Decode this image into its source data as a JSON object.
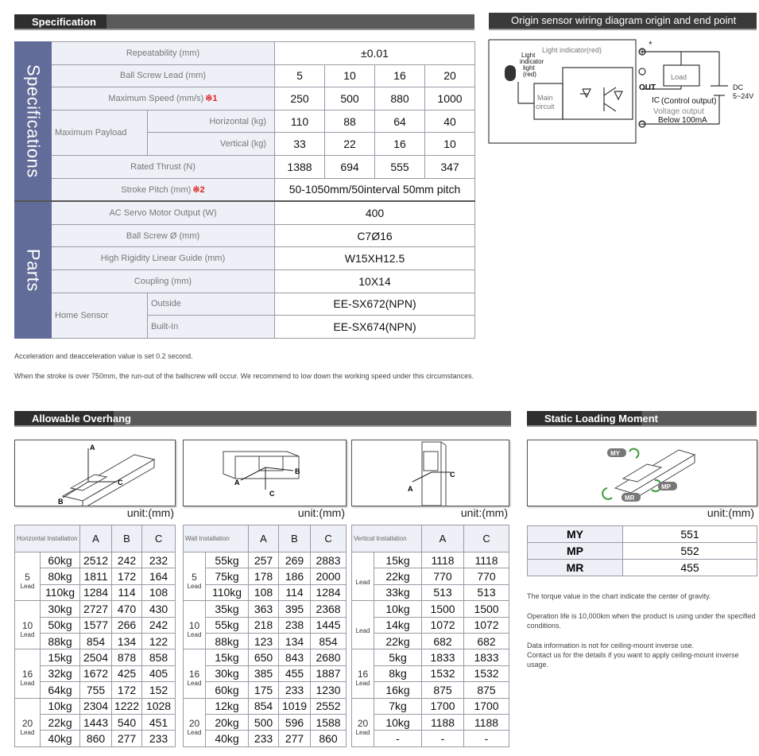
{
  "specification": {
    "title": "Specification",
    "groups": [
      {
        "name": "Specifications",
        "rows": [
          {
            "label": "Repeatability (mm)",
            "values": [
              "±0.01"
            ]
          },
          {
            "label": "Ball Screw Lead (mm)",
            "values": [
              5,
              10,
              16,
              20
            ]
          },
          {
            "label": "Maximum Speed (mm/s)",
            "note": "※1",
            "values": [
              250,
              500,
              880,
              1000
            ]
          },
          {
            "label": "Maximum Payload",
            "sub": [
              {
                "label": "Horizontal (kg)",
                "values": [
                  110,
                  88,
                  64,
                  40
                ]
              },
              {
                "label": "Vertical (kg)",
                "values": [
                  33,
                  22,
                  16,
                  10
                ]
              }
            ]
          },
          {
            "label": "Rated Thrust (N)",
            "values": [
              1388,
              694,
              555,
              347
            ]
          },
          {
            "label": "Stroke Pitch (mm)",
            "note": "※2",
            "values": [
              "50-1050mm/50interval 50mm pitch"
            ]
          }
        ]
      },
      {
        "name": "Parts",
        "rows": [
          {
            "label": "AC Servo Motor Output (W)",
            "values": [
              400
            ]
          },
          {
            "label": "Ball Screw Ø (mm)",
            "values": [
              "C7Ø16"
            ]
          },
          {
            "label": "High Rigidity Linear Guide (mm)",
            "values": [
              "W15XH12.5"
            ]
          },
          {
            "label": "Coupling (mm)",
            "values": [
              "10X14"
            ]
          },
          {
            "label": "Home Sensor",
            "sub": [
              {
                "label": "Outside",
                "values": [
                  "EE-SX672(NPN)"
                ]
              },
              {
                "label": "Built-In",
                "values": [
                  "EE-SX674(NPN)"
                ]
              }
            ]
          }
        ]
      }
    ],
    "notes": [
      "Acceleration and deacceleration value is set 0.2 second.",
      "When the stroke is over 750mm, the run-out of the ballscrew will occur. We recommend to low down the working speed under this circumstances."
    ]
  },
  "wiring": {
    "title": "Origin sensor wiring diagram origin and end point",
    "indicator": "Light indicator(red)",
    "indicator_light": [
      "Light",
      "indicator",
      "light",
      "(red)"
    ],
    "main_circuit": [
      "Main",
      "circuit"
    ],
    "load": "Load",
    "out": "OUT",
    "ic": "IC",
    "control": "(Control output)",
    "voltage": "Voltage output",
    "current": "Below 100mA",
    "dc": [
      "DC",
      "5~24V"
    ],
    "plus": "⊕",
    "minus": "⊖",
    "star": "*"
  },
  "overhang": {
    "title": "Allowable Overhang",
    "tables": [
      {
        "figure_labels": [
          "A",
          "B",
          "C"
        ],
        "unit": "unit:(mm)",
        "header": [
          "Horizontal Installation",
          "A",
          "B",
          "C"
        ],
        "groups": [
          {
            "lead": "5",
            "lead_unit": "Lead",
            "rows": [
              [
                "60kg",
                2512,
                242,
                232
              ],
              [
                "80kg",
                1811,
                172,
                164
              ],
              [
                "110kg",
                1284,
                114,
                108
              ]
            ]
          },
          {
            "lead": "10",
            "lead_unit": "Lead",
            "rows": [
              [
                "30kg",
                2727,
                470,
                430
              ],
              [
                "50kg",
                1577,
                266,
                242
              ],
              [
                "88kg",
                854,
                134,
                122
              ]
            ]
          },
          {
            "lead": "16",
            "lead_unit": "Lead",
            "rows": [
              [
                "15kg",
                2504,
                878,
                858
              ],
              [
                "32kg",
                1672,
                425,
                405
              ],
              [
                "64kg",
                755,
                172,
                152
              ]
            ]
          },
          {
            "lead": "20",
            "lead_unit": "Lead",
            "rows": [
              [
                "10kg",
                2304,
                1222,
                1028
              ],
              [
                "22kg",
                1443,
                540,
                451
              ],
              [
                "40kg",
                860,
                277,
                233
              ]
            ]
          }
        ]
      },
      {
        "figure_labels": [
          "A",
          "B",
          "C"
        ],
        "unit": "unit:(mm)",
        "header": [
          "Wall Installation",
          "A",
          "B",
          "C"
        ],
        "groups": [
          {
            "lead": "5",
            "lead_unit": "Lead",
            "rows": [
              [
                "55kg",
                257,
                269,
                2883
              ],
              [
                "75kg",
                178,
                186,
                2000
              ],
              [
                "110kg",
                108,
                114,
                1284
              ]
            ]
          },
          {
            "lead": "10",
            "lead_unit": "Lead",
            "rows": [
              [
                "35kg",
                363,
                395,
                2368
              ],
              [
                "55kg",
                218,
                238,
                1445
              ],
              [
                "88kg",
                123,
                134,
                854
              ]
            ]
          },
          {
            "lead": "16",
            "lead_unit": "Lead",
            "rows": [
              [
                "15kg",
                650,
                843,
                2680
              ],
              [
                "30kg",
                385,
                455,
                1887
              ],
              [
                "60kg",
                175,
                233,
                1230
              ]
            ]
          },
          {
            "lead": "20",
            "lead_unit": "Lead",
            "rows": [
              [
                "12kg",
                854,
                1019,
                2552
              ],
              [
                "20kg",
                500,
                596,
                1588
              ],
              [
                "40kg",
                233,
                277,
                860
              ]
            ]
          }
        ]
      },
      {
        "figure_labels": [
          "A",
          "C"
        ],
        "unit": "unit:(mm)",
        "header": [
          "Vertical Installation",
          "A",
          "C"
        ],
        "groups": [
          {
            "lead_unit": "Lead",
            "rows": [
              [
                "15kg",
                1118,
                1118
              ],
              [
                "22kg",
                770,
                770
              ],
              [
                "33kg",
                513,
                513
              ]
            ]
          },
          {
            "lead_unit": "Lead",
            "rows": [
              [
                "10kg",
                1500,
                1500
              ],
              [
                "14kg",
                1072,
                1072
              ],
              [
                "22kg",
                682,
                682
              ]
            ]
          },
          {
            "lead": "16",
            "lead_unit": "Lead",
            "rows": [
              [
                "5kg",
                1833,
                1833
              ],
              [
                "8kg",
                1532,
                1532
              ],
              [
                "16kg",
                875,
                875
              ]
            ]
          },
          {
            "lead": "20",
            "lead_unit": "Lead",
            "rows": [
              [
                "7kg",
                1700,
                1700
              ],
              [
                "10kg",
                1188,
                1188
              ],
              [
                "-",
                "-",
                "-"
              ]
            ]
          }
        ]
      }
    ]
  },
  "moment": {
    "title": "Static Loading Moment",
    "figure_labels": [
      "MY",
      "MP",
      "MR"
    ],
    "unit": "unit:(mm)",
    "rows": [
      [
        "MY",
        551
      ],
      [
        "MP",
        552
      ],
      [
        "MR",
        455
      ]
    ],
    "notes": [
      "The torque value in the chart indicate the center of gravity.",
      "Operation life is 10,000km when the product is using under the specified conditions.",
      "Data information is not for ceiling-mount inverse use.",
      "Contact us for the details if you want to apply ceiling-mount inverse usage."
    ]
  }
}
